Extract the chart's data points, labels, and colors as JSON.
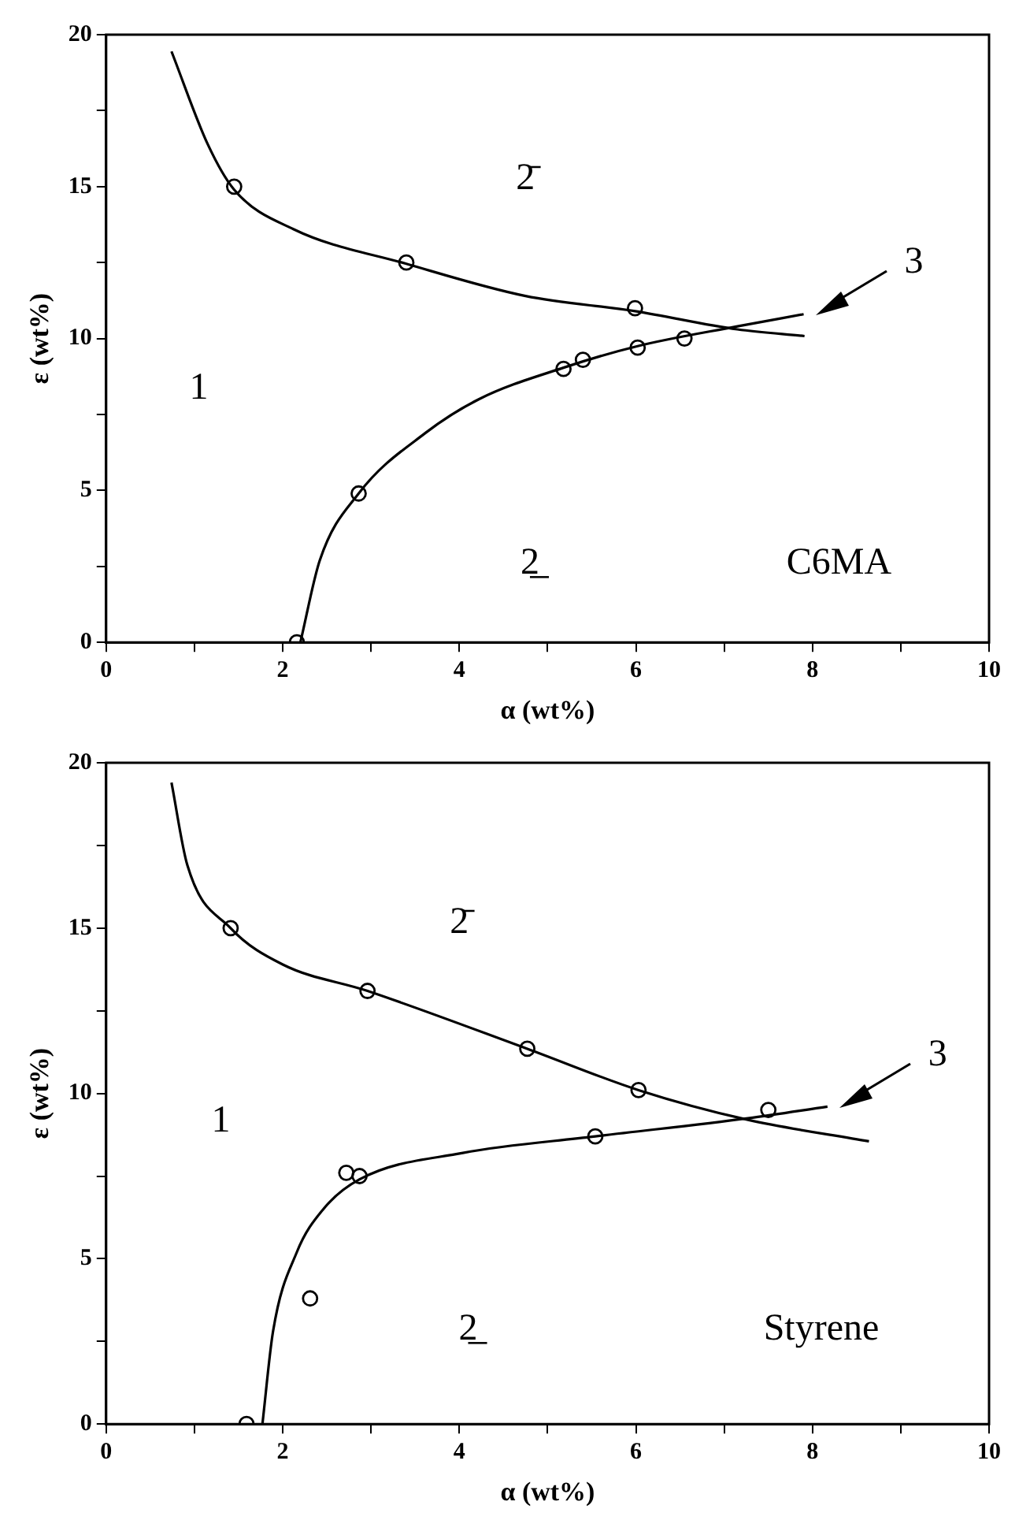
{
  "chart_data": [
    {
      "type": "scatter",
      "xlabel": "α (wt%)",
      "ylabel": "ε (wt%)",
      "xlim": [
        0,
        10
      ],
      "ylim": [
        0,
        20
      ],
      "xticks": [
        0,
        {
          "value": 1,
          "label": null
        },
        2,
        {
          "value": 3,
          "label": null
        },
        4,
        {
          "value": 5,
          "label": null
        },
        6,
        {
          "value": 7,
          "label": null
        },
        8,
        {
          "value": 9,
          "label": null
        },
        10
      ],
      "yticks": [
        0,
        {
          "value": 2.5,
          "label": null
        },
        5,
        {
          "value": 7.5,
          "label": null
        },
        10,
        {
          "value": 12.5,
          "label": null
        },
        15,
        {
          "value": 17.5,
          "label": null
        },
        20
      ],
      "grid": false,
      "legend": false,
      "marker": "circle",
      "series": [
        {
          "type": "line",
          "color": "#000000",
          "marker": "none",
          "x": [
            0.74,
            1.15,
            1.45,
            2.12,
            3.4,
            4.75,
            5.99,
            7.15,
            7.91
          ],
          "values": [
            19.45,
            16.4,
            14.9,
            13.6,
            12.46,
            11.4,
            10.9,
            10.3,
            10.08
          ]
        },
        {
          "type": "line",
          "color": "#000000",
          "marker": "none",
          "x": [
            2.2,
            2.42,
            2.86,
            3.62,
            4.22,
            5.18,
            6.02,
            7.15,
            7.9
          ],
          "values": [
            0,
            2.7,
            4.9,
            6.9,
            8.0,
            9.04,
            9.75,
            10.4,
            10.8
          ]
        },
        {
          "type": "scatter",
          "color": "#000000",
          "x": [
            1.45,
            3.4,
            5.99,
            2.16,
            2.86,
            5.18,
            5.4,
            6.02,
            6.55
          ],
          "values": [
            15.0,
            12.5,
            11.0,
            0,
            4.9,
            9.0,
            9.3,
            9.7,
            10.0
          ]
        }
      ],
      "annotations": [
        "1",
        "2̄",
        "2̲",
        "C6MA",
        {
          "text": "3",
          "x": 7.9,
          "y": 10.8
        }
      ]
    },
    {
      "type": "scatter",
      "xlabel": "α (wt%)",
      "ylabel": "ε (wt%)",
      "xlim": [
        0,
        10
      ],
      "ylim": [
        0,
        20
      ],
      "xticks": [
        0,
        {
          "value": 1,
          "label": null
        },
        2,
        {
          "value": 3,
          "label": null
        },
        4,
        {
          "value": 5,
          "label": null
        },
        6,
        {
          "value": 7,
          "label": null
        },
        8,
        {
          "value": 9,
          "label": null
        },
        10
      ],
      "yticks": [
        0,
        {
          "value": 2.5,
          "label": null
        },
        5,
        {
          "value": 7.5,
          "label": null
        },
        10,
        {
          "value": 12.5,
          "label": null
        },
        15,
        {
          "value": 17.5,
          "label": null
        },
        20
      ],
      "grid": false,
      "legend": false,
      "marker": "circle",
      "series": [
        {
          "type": "line",
          "color": "#000000",
          "marker": "none",
          "x": [
            0.74,
            0.92,
            1.41,
            2.0,
            2.96,
            4.77,
            6.03,
            7.27,
            8.64
          ],
          "values": [
            19.4,
            16.9,
            15.0,
            13.9,
            13.1,
            11.35,
            10.1,
            9.2,
            8.55
          ]
        },
        {
          "type": "line",
          "color": "#000000",
          "marker": "none",
          "x": [
            1.77,
            1.89,
            2.16,
            2.46,
            2.87,
            4.04,
            5.54,
            7.27,
            8.17
          ],
          "values": [
            0,
            2.8,
            5.2,
            6.5,
            7.4,
            8.2,
            8.7,
            9.25,
            9.6
          ]
        },
        {
          "type": "scatter",
          "color": "#000000",
          "x": [
            1.41,
            2.96,
            4.77,
            6.03,
            7.5,
            1.59,
            2.31,
            2.72,
            2.87,
            5.54
          ],
          "values": [
            15.0,
            13.1,
            11.35,
            10.1,
            9.5,
            0,
            3.8,
            7.6,
            7.5,
            8.7
          ]
        }
      ],
      "annotations": [
        "1",
        "2̄",
        "2̲",
        "Styrene",
        {
          "text": "3",
          "x": 8.17,
          "y": 9.6
        }
      ]
    }
  ]
}
